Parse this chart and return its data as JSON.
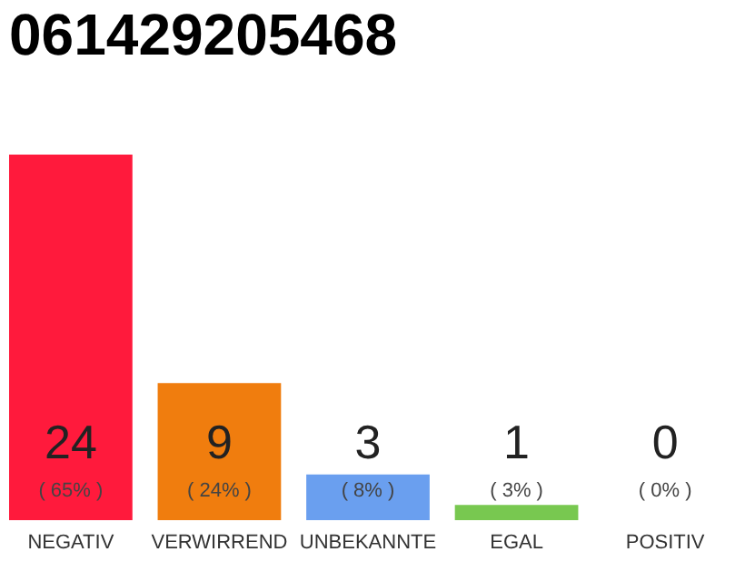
{
  "chart_data": {
    "type": "bar",
    "title": "061429205468",
    "categories": [
      "NEGATIV",
      "VERWIRREND",
      "UNBEKANNTE",
      "EGAL",
      "POSITIV"
    ],
    "values": [
      24,
      9,
      3,
      1,
      0
    ],
    "colors": [
      "#ff1a3c",
      "#f07d0e",
      "#6a9fef",
      "#78c850",
      "#2aa050"
    ],
    "tick_labels": "x",
    "data_labels": true,
    "grid": false,
    "annotations": [
      "( 65% )",
      "( 24% )",
      "( 8% )",
      "( 3% )",
      "( 0% )"
    ]
  }
}
